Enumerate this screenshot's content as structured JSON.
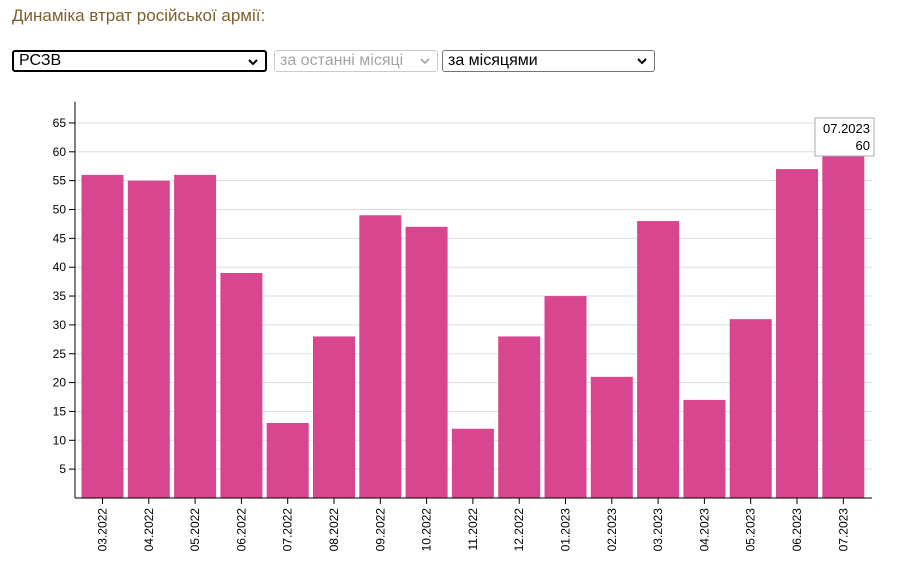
{
  "title": "Динаміка втрат російської армії:",
  "controls": {
    "type_select": {
      "value": "РСЗВ"
    },
    "period_select": {
      "value": "за останні місяці"
    },
    "group_select": {
      "value": "за місяцями"
    }
  },
  "tooltip": {
    "label": "07.2023",
    "value": "60"
  },
  "colors": {
    "bar": "#d94690",
    "title": "#7d5f2c"
  },
  "chart_data": {
    "type": "bar",
    "categories": [
      "03.2022",
      "04.2022",
      "05.2022",
      "06.2022",
      "07.2022",
      "08.2022",
      "09.2022",
      "10.2022",
      "11.2022",
      "12.2022",
      "01.2023",
      "02.2023",
      "03.2023",
      "04.2023",
      "05.2023",
      "06.2023",
      "07.2023"
    ],
    "values": [
      56,
      55,
      56,
      39,
      13,
      28,
      49,
      47,
      12,
      28,
      35,
      21,
      48,
      17,
      31,
      57,
      60
    ],
    "yticks": [
      5,
      10,
      15,
      20,
      25,
      30,
      35,
      40,
      45,
      50,
      55,
      60,
      65
    ],
    "ylim": [
      0,
      68
    ],
    "grid": true
  }
}
